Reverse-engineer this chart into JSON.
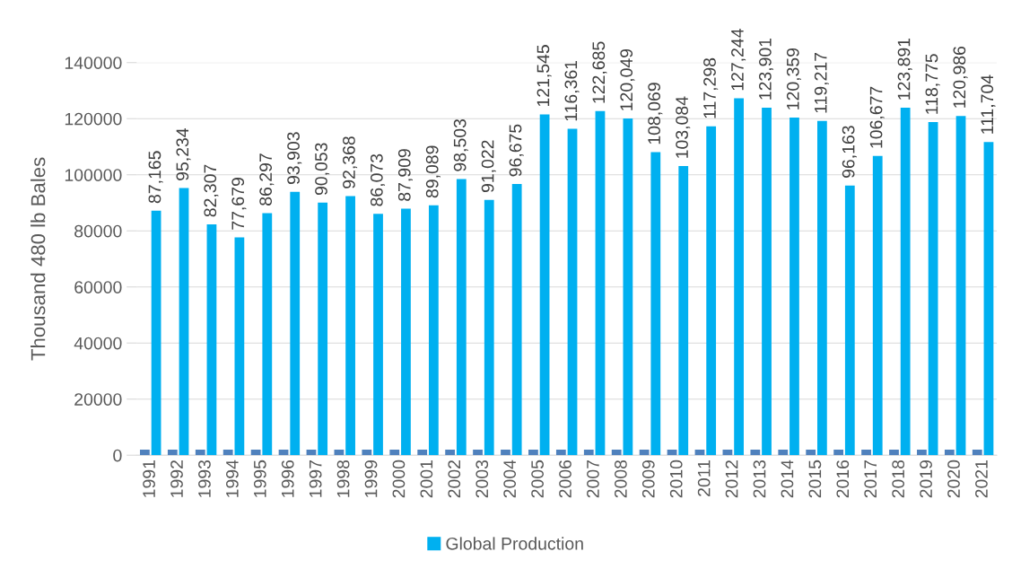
{
  "chart_data": {
    "type": "bar",
    "ylabel": "Thousand 480 lb Bales",
    "categories": [
      "1991",
      "1992",
      "1993",
      "1994",
      "1995",
      "1996",
      "1997",
      "1998",
      "1999",
      "2000",
      "2001",
      "2002",
      "2003",
      "2004",
      "2005",
      "2006",
      "2007",
      "2008",
      "2009",
      "2010",
      "2011",
      "2012",
      "2013",
      "2014",
      "2015",
      "2016",
      "2017",
      "2018",
      "2019",
      "2020",
      "2021"
    ],
    "series": [
      {
        "color": "#4f81bd",
        "values": [
          2000,
          2000,
          2000,
          2000,
          2000,
          2000,
          2000,
          2000,
          2000,
          2000,
          2000,
          2000,
          2000,
          2000,
          2000,
          2000,
          2000,
          2000,
          2000,
          2000,
          2000,
          2000,
          2000,
          2000,
          2000,
          2000,
          2000,
          2000,
          2000,
          2000,
          2000
        ]
      },
      {
        "name": "Global Production",
        "color": "#00b0f0",
        "values": [
          87165,
          95234,
          82307,
          77679,
          86297,
          93903,
          90053,
          92368,
          86073,
          87909,
          89089,
          98503,
          91022,
          96675,
          121545,
          116361,
          122685,
          120049,
          108069,
          103084,
          117298,
          127244,
          123901,
          120359,
          119217,
          96163,
          106677,
          123891,
          118775,
          120986,
          111704
        ],
        "value_labels": [
          "87,165",
          "95,234",
          "82,307",
          "77,679",
          "86,297",
          "93,903",
          "90,053",
          "92,368",
          "86,073",
          "87,909",
          "89,089",
          "98,503",
          "91,022",
          "96,675",
          "121,545",
          "116,361",
          "122,685",
          "120,049",
          "108,069",
          "103,084",
          "117,298",
          "127,244",
          "123,901",
          "120,359",
          "119,217",
          "96,163",
          "106,677",
          "123,891",
          "118,775",
          "120,986",
          "111,704"
        ]
      }
    ],
    "ylim": [
      0,
      140000
    ],
    "yticks": [
      0,
      20000,
      40000,
      60000,
      80000,
      100000,
      120000,
      140000
    ],
    "grid": "y",
    "legend": "bottom"
  }
}
